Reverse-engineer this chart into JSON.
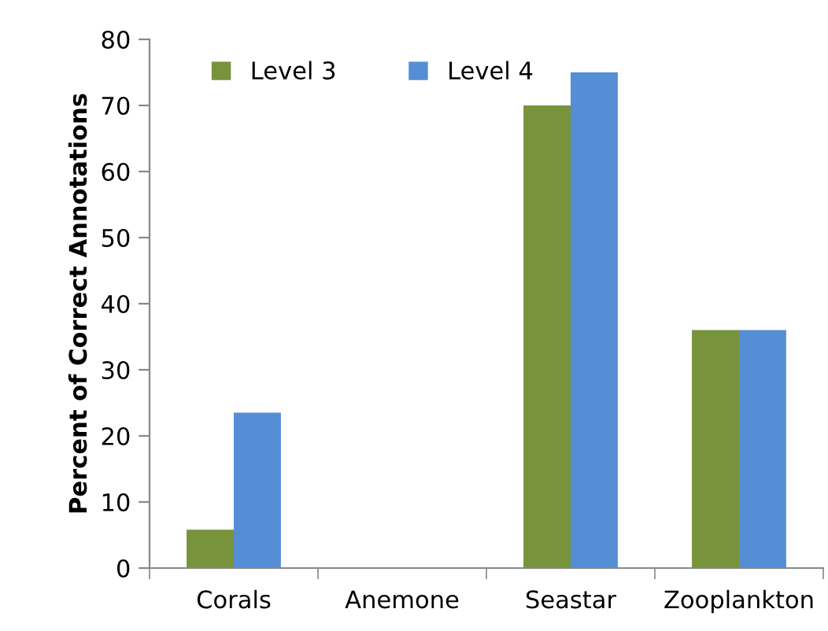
{
  "chart_data": {
    "type": "bar",
    "ylabel": "Percent of Correct Annotations",
    "categories": [
      "Corals",
      "Anemone",
      "Seastar",
      "Zooplankton"
    ],
    "series": [
      {
        "name": "Level 3",
        "color": "#77933c",
        "values": [
          5.8,
          0,
          70,
          36
        ]
      },
      {
        "name": "Level 4",
        "color": "#558ed5",
        "values": [
          23.5,
          0,
          75,
          36
        ]
      }
    ],
    "ylim": [
      0,
      80
    ],
    "yticks": [
      0,
      10,
      20,
      30,
      40,
      50,
      60,
      70,
      80
    ],
    "grid": false,
    "legend": "top left"
  }
}
